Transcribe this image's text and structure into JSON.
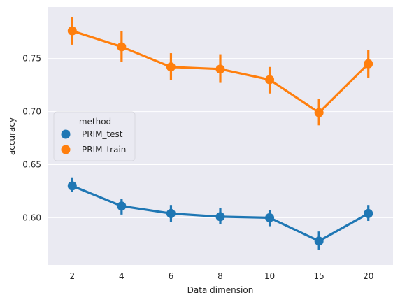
{
  "chart_data": {
    "type": "line",
    "style": "seaborn pointplot with error bars",
    "title": "",
    "xlabel": "Data dimension",
    "ylabel": "accuracy",
    "categories": [
      "2",
      "4",
      "6",
      "8",
      "10",
      "15",
      "20"
    ],
    "ylim": [
      0.5555,
      0.7985
    ],
    "yticks": [
      "0.60",
      "0.65",
      "0.70",
      "0.75"
    ],
    "grid": true,
    "legend": {
      "title": "method",
      "placement": "center-left"
    },
    "series": [
      {
        "name": "PRIM_test",
        "color": "#1f77b4",
        "values": [
          0.63,
          0.611,
          0.604,
          0.601,
          0.6,
          0.578,
          0.604
        ],
        "ci_low": [
          0.624,
          0.603,
          0.596,
          0.594,
          0.592,
          0.57,
          0.597
        ],
        "ci_high": [
          0.638,
          0.618,
          0.612,
          0.609,
          0.607,
          0.587,
          0.612
        ]
      },
      {
        "name": "PRIM_train",
        "color": "#ff7f0e",
        "values": [
          0.776,
          0.761,
          0.742,
          0.74,
          0.73,
          0.699,
          0.745
        ],
        "ci_low": [
          0.763,
          0.747,
          0.73,
          0.727,
          0.717,
          0.687,
          0.732
        ],
        "ci_high": [
          0.789,
          0.776,
          0.755,
          0.754,
          0.742,
          0.712,
          0.758
        ]
      }
    ]
  }
}
